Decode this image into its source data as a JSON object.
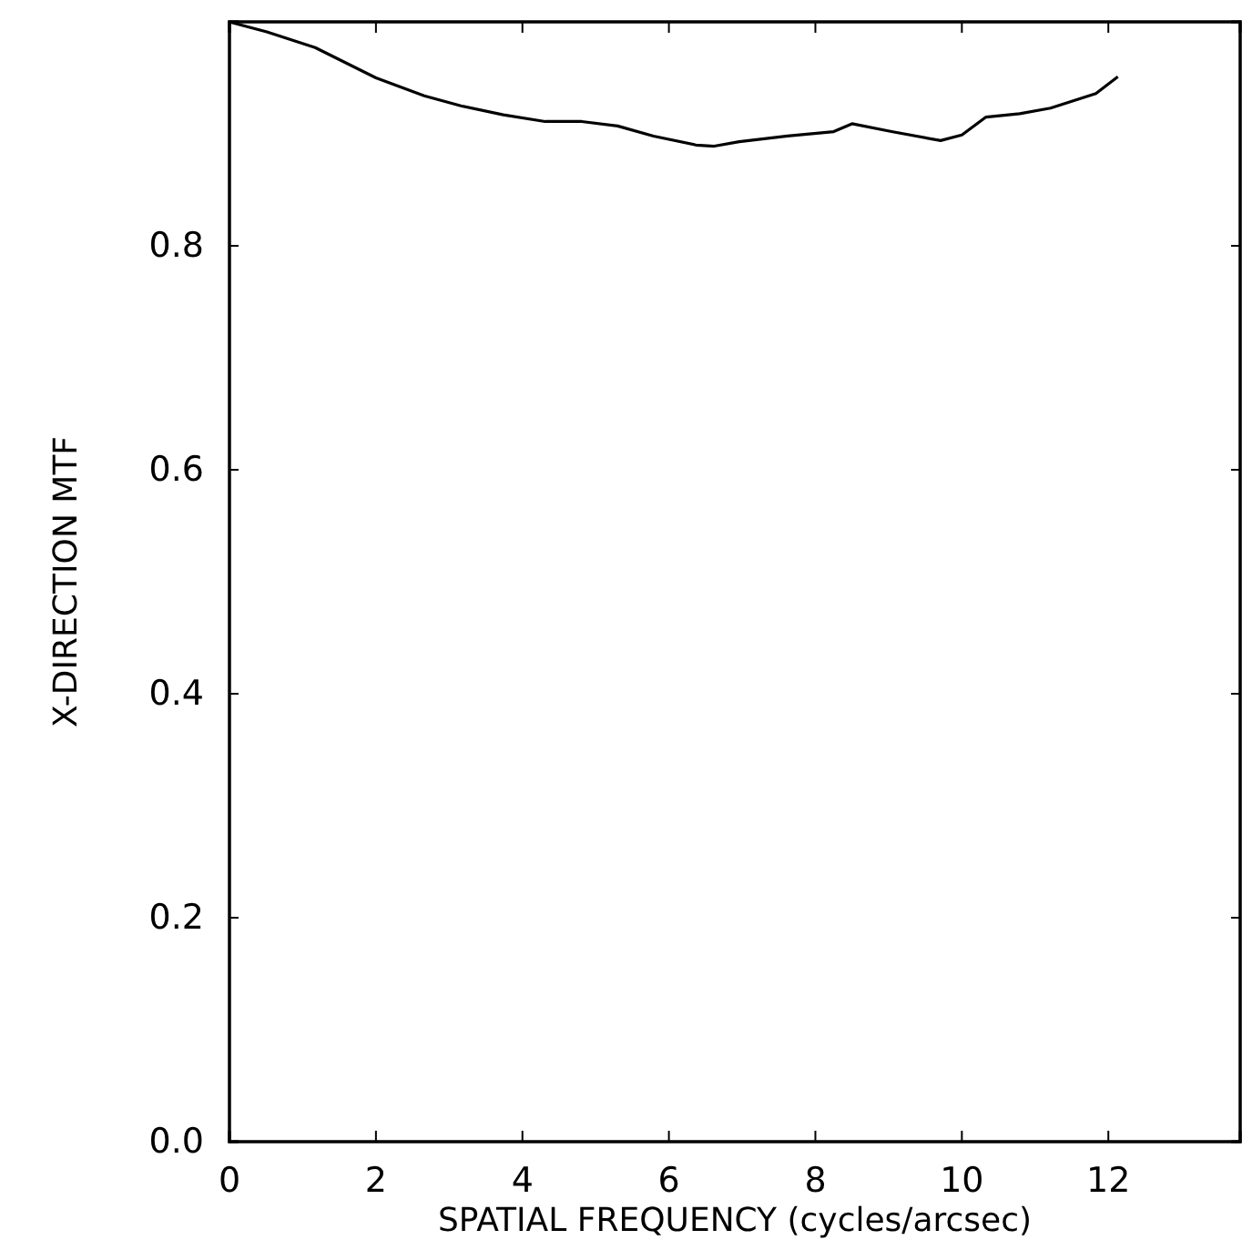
{
  "chart_data": {
    "type": "line",
    "xlabel": "SPATIAL FREQUENCY (cycles/arcsec)",
    "ylabel": "X-DIRECTION MTF",
    "xlim": [
      0,
      13.8
    ],
    "ylim": [
      0,
      1
    ],
    "xticks": [
      0,
      2,
      4,
      6,
      8,
      10,
      12
    ],
    "yticks": [
      {
        "value": 0,
        "label": "0.0"
      },
      0.2,
      0.4,
      0.6,
      0.8
    ],
    "grid": false,
    "marker": "none",
    "line_style": "solid",
    "series": [
      {
        "color": "#000000",
        "x": [
          0,
          0.51,
          1.17,
          2.0,
          2.66,
          3.16,
          3.74,
          4.31,
          4.81,
          5.3,
          5.79,
          6.37,
          6.62,
          6.96,
          7.62,
          8.25,
          8.5,
          9.04,
          9.71,
          10.0,
          10.33,
          10.79,
          11.21,
          11.83,
          12.13
        ],
        "values": [
          1.0,
          0.991,
          0.977,
          0.95,
          0.934,
          0.925,
          0.917,
          0.911,
          0.911,
          0.907,
          0.898,
          0.89,
          0.889,
          0.893,
          0.898,
          0.902,
          0.909,
          0.902,
          0.894,
          0.899,
          0.915,
          0.918,
          0.923,
          0.936,
          0.951
        ]
      }
    ]
  }
}
